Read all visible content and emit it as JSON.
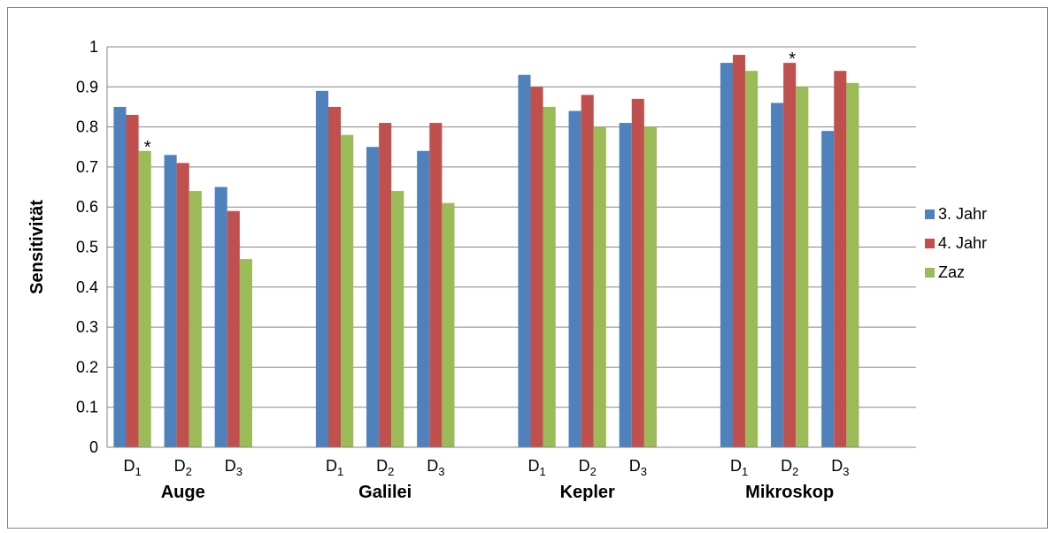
{
  "chart_data": {
    "type": "bar",
    "ylabel": "Sensitivität",
    "ylim": [
      0,
      1
    ],
    "yticks": [
      "0",
      "0.1",
      "0.2",
      "0.3",
      "0.4",
      "0.5",
      "0.6",
      "0.7",
      "0.8",
      "0.9",
      "1"
    ],
    "grid": true,
    "legend_position": "right",
    "groups": [
      "Auge",
      "Galilei",
      "Kepler",
      "Mikroskop"
    ],
    "subcategories": [
      {
        "base": "D",
        "sub": "1"
      },
      {
        "base": "D",
        "sub": "2"
      },
      {
        "base": "D",
        "sub": "3"
      }
    ],
    "series": [
      {
        "name": "3. Jahr",
        "color": "#4f81bd",
        "values": [
          0.85,
          0.73,
          0.65,
          0.89,
          0.75,
          0.74,
          0.93,
          0.84,
          0.81,
          0.96,
          0.86,
          0.79
        ]
      },
      {
        "name": "4. Jahr",
        "color": "#c0504d",
        "values": [
          0.83,
          0.71,
          0.59,
          0.85,
          0.81,
          0.81,
          0.9,
          0.88,
          0.87,
          0.98,
          0.96,
          0.94
        ]
      },
      {
        "name": "Zaz",
        "color": "#9bbb59",
        "values": [
          0.74,
          0.64,
          0.47,
          0.78,
          0.64,
          0.61,
          0.85,
          0.8,
          0.8,
          0.94,
          0.9,
          0.91
        ]
      }
    ],
    "annotations": [
      {
        "text": "*",
        "group": "Auge",
        "subcategory": "D1",
        "series": "Zaz"
      },
      {
        "text": "*",
        "group": "Mikroskop",
        "subcategory": "D2",
        "series": "4. Jahr"
      }
    ]
  }
}
